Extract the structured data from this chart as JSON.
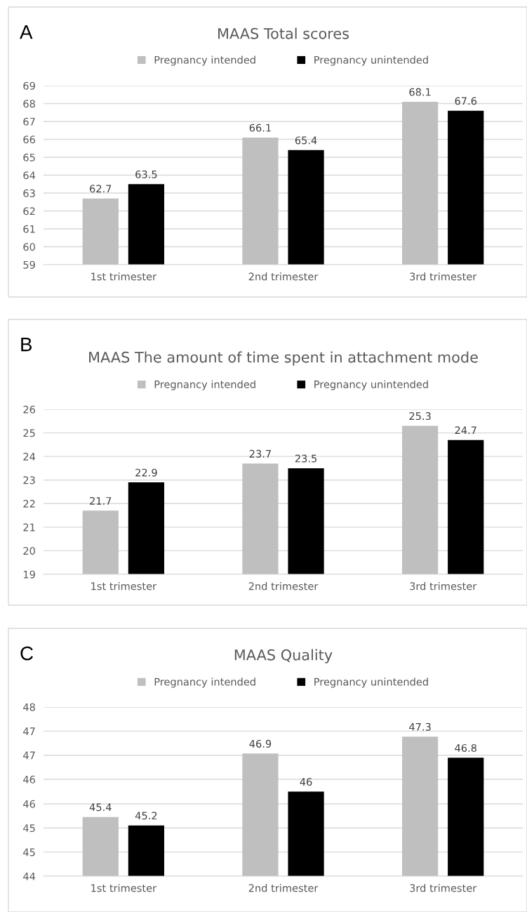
{
  "chart_data": [
    {
      "type": "bar",
      "title": "MAAS Total scores",
      "annotations": [
        "A"
      ],
      "categories": [
        "1st trimester",
        "2nd trimester",
        "3rd trimester"
      ],
      "series": [
        {
          "name": "Pregnancy intended",
          "color": "#bfbfbf",
          "values": [
            62.7,
            66.1,
            68.1
          ]
        },
        {
          "name": "Pregnancy unintended",
          "color": "#000000",
          "values": [
            63.5,
            65.4,
            67.6
          ]
        }
      ],
      "ylim": [
        59,
        69
      ],
      "yticks": [
        59,
        60,
        61,
        62,
        63,
        64,
        65,
        66,
        67,
        68,
        69
      ],
      "grid": "y",
      "legend": "top",
      "data_labels": true
    },
    {
      "type": "bar",
      "title": "MAAS The amount of time spent in attachment mode",
      "annotations": [
        "B"
      ],
      "categories": [
        "1st trimester",
        "2nd trimester",
        "3rd trimester"
      ],
      "series": [
        {
          "name": "Pregnancy intended",
          "color": "#bfbfbf",
          "values": [
            21.7,
            23.7,
            25.3
          ]
        },
        {
          "name": "Pregnancy unintended",
          "color": "#000000",
          "values": [
            22.9,
            23.5,
            24.7
          ]
        }
      ],
      "ylim": [
        19,
        26
      ],
      "yticks": [
        19,
        20,
        21,
        22,
        23,
        24,
        25,
        26
      ],
      "grid": "y",
      "legend": "top",
      "data_labels": true
    },
    {
      "type": "bar",
      "title": "MAAS Quality",
      "annotations": [
        "C"
      ],
      "categories": [
        "1st trimester",
        "2nd trimester",
        "3rd trimester"
      ],
      "series": [
        {
          "name": "Pregnancy intended",
          "color": "#bfbfbf",
          "values": [
            45.4,
            46.9,
            47.3
          ]
        },
        {
          "name": "Pregnancy unintended",
          "color": "#000000",
          "values": [
            45.2,
            46,
            46.8
          ]
        }
      ],
      "ylim": [
        44,
        48
      ],
      "yticks": [
        44,
        {
          "value": 44.57,
          "label": "45"
        },
        {
          "value": 45.14,
          "label": "45"
        },
        {
          "value": 45.71,
          "label": "46"
        },
        {
          "value": 46.29,
          "label": "46"
        },
        {
          "value": 46.86,
          "label": "47"
        },
        {
          "value": 47.43,
          "label": "47"
        },
        48
      ],
      "grid": "y",
      "legend": "top",
      "data_labels": true
    }
  ]
}
